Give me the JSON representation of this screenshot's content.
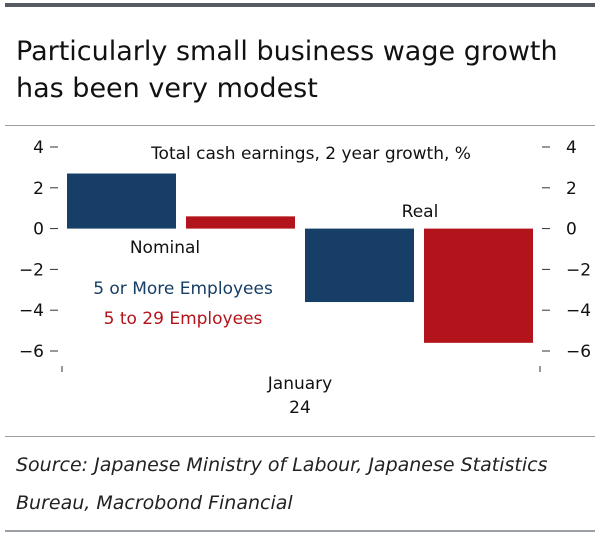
{
  "header": {
    "title": "Particularly small business wage growth has been very modest"
  },
  "chart_data": {
    "type": "bar",
    "title": "Total cash earnings, 2 year growth, %",
    "categories": [
      "Nominal",
      "Real"
    ],
    "series": [
      {
        "name": "5 or More Employees",
        "color": "#163e66",
        "values": [
          2.7,
          -3.6
        ]
      },
      {
        "name": "5 to 29 Employees",
        "color": "#b3141b",
        "values": [
          0.6,
          -5.6
        ]
      }
    ],
    "ylim": [
      -6,
      4
    ],
    "yticks": [
      4,
      2,
      0,
      -2,
      -4,
      -6
    ],
    "ytick_labels": [
      "4",
      "2",
      "0",
      "−2",
      "−4",
      "−6"
    ],
    "xlabel_line1": "January",
    "xlabel_line2": "24"
  },
  "footer": {
    "source": "Source: Japanese Ministry of Labour, Japanese Statistics Bureau, Macrobond Financial"
  }
}
